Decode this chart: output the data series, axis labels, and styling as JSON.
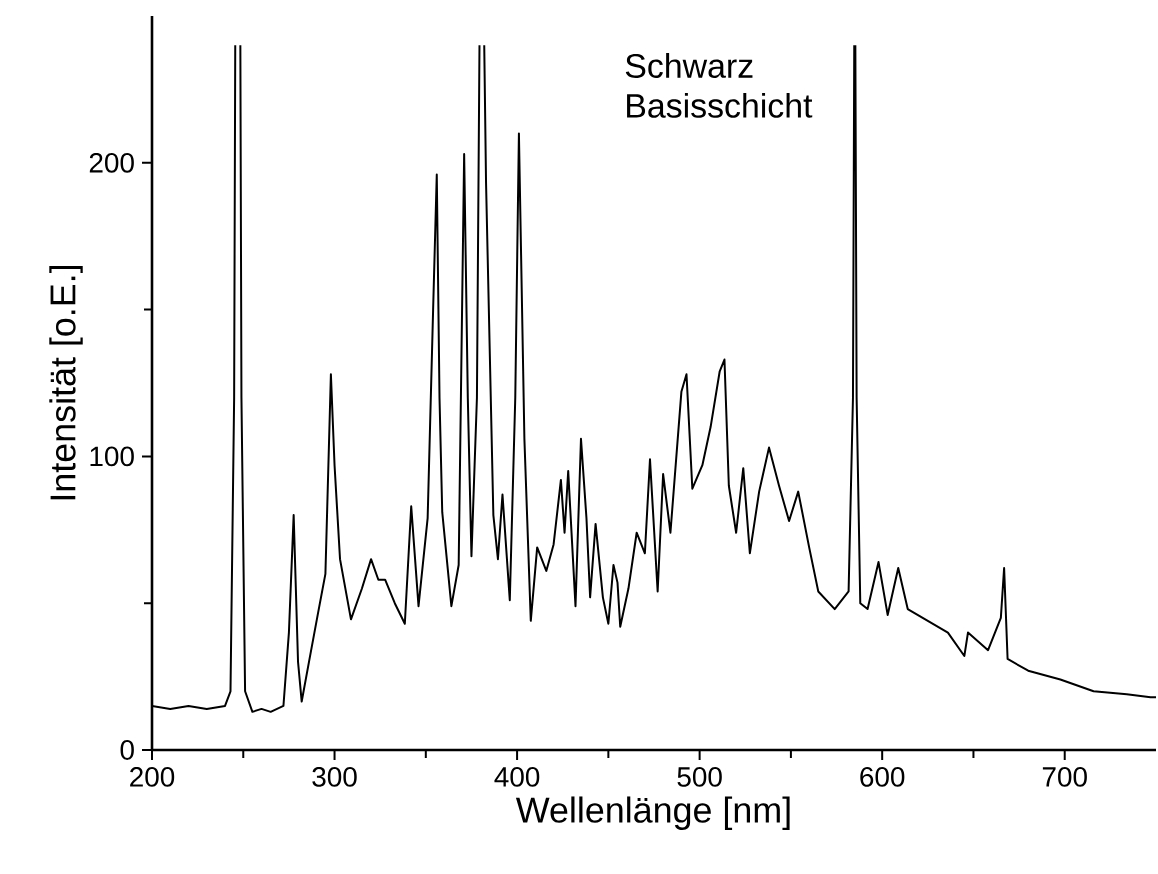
{
  "chart_data": {
    "type": "line",
    "xlabel": "Wellenlänge [nm]",
    "ylabel": "Intensität [o.E.]",
    "annotations": [
      "Schwarz Basisschicht"
    ],
    "color": "#000000",
    "xlim": [
      200,
      750
    ],
    "ylim": [
      0,
      250
    ],
    "xticks": [
      200,
      300,
      400,
      500,
      600,
      700
    ],
    "yticks": [
      0,
      100,
      200
    ],
    "x": [
      200,
      210,
      220,
      230,
      240,
      243,
      245,
      245.6,
      246,
      248,
      248.4,
      249,
      251,
      255,
      260,
      265,
      272,
      275,
      277.6,
      280,
      282,
      286,
      291,
      295,
      298,
      300,
      303,
      309,
      315,
      320,
      324,
      327.7,
      333,
      338.5,
      342,
      346,
      351,
      354,
      356,
      357.5,
      359,
      364,
      368,
      371,
      373,
      375,
      378,
      379.4,
      380,
      382,
      383,
      387,
      389.5,
      392,
      396,
      399,
      401,
      404,
      407.5,
      411,
      416,
      420,
      424,
      426,
      428,
      432,
      435,
      438,
      440,
      443,
      447,
      450,
      452.8,
      455,
      456.5,
      461,
      465.5,
      470,
      472.8,
      477,
      480,
      484,
      490,
      492.8,
      496,
      501.5,
      506,
      511,
      513.6,
      516,
      520,
      523.9,
      527.5,
      532.6,
      538,
      543.5,
      549,
      554,
      560,
      565,
      574,
      581.6,
      584,
      584.7,
      585,
      585.3,
      586,
      588,
      592,
      598,
      603,
      608.8,
      614,
      625,
      636,
      645,
      647,
      658,
      665,
      666.8,
      668.7,
      680,
      697.6,
      715.8,
      734,
      747,
      750
    ],
    "values": [
      15,
      14,
      15,
      14,
      15,
      20,
      120,
      240,
      null,
      null,
      240,
      120,
      20,
      13,
      14,
      13,
      15,
      40,
      80,
      30,
      16.5,
      30,
      46.8,
      60,
      128,
      97,
      65,
      44.5,
      55,
      65,
      58,
      58,
      50,
      43,
      83,
      49,
      79,
      150,
      196,
      120,
      81,
      49,
      63,
      203,
      120,
      66,
      120,
      240,
      null,
      240,
      193,
      80,
      65,
      87,
      51,
      120,
      210,
      106,
      44,
      69,
      61,
      70,
      92,
      74,
      95,
      49,
      106,
      79,
      52,
      77,
      52,
      43,
      63,
      57,
      42,
      55,
      74,
      67,
      99,
      54,
      94,
      74,
      122,
      128,
      89,
      97,
      110,
      129,
      133,
      90,
      74,
      96,
      67,
      88,
      103,
      90,
      78,
      88,
      69,
      54,
      48,
      54,
      120,
      240,
      null,
      240,
      120,
      50,
      48,
      64,
      46,
      62,
      48,
      44,
      40,
      32,
      40,
      34,
      45,
      62,
      31,
      27,
      24,
      20,
      19,
      18,
      18
    ]
  }
}
